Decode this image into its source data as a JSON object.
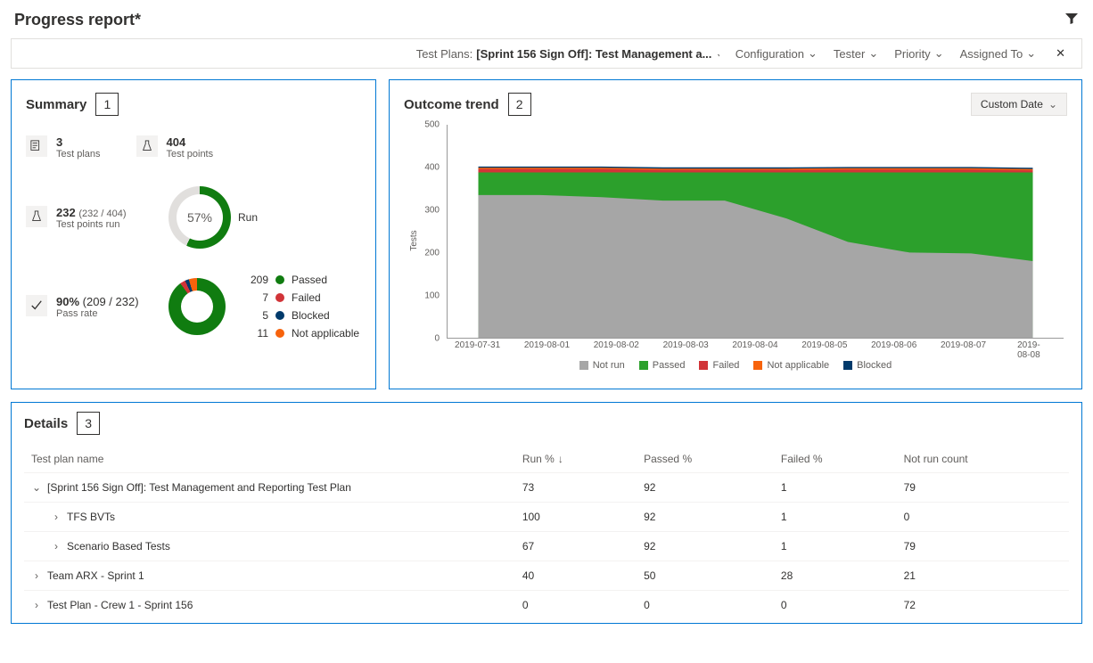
{
  "header": {
    "title": "Progress report*"
  },
  "filterbar": {
    "testplans_label": "Test Plans:",
    "testplans_value": "[Sprint 156 Sign Off]: Test Management a...",
    "dropdowns": [
      "Configuration",
      "Tester",
      "Priority",
      "Assigned To"
    ]
  },
  "summary": {
    "title": "Summary",
    "badge": "1",
    "testplans": {
      "value": "3",
      "label": "Test plans"
    },
    "testpoints": {
      "value": "404",
      "label": "Test points"
    },
    "run": {
      "value": "232",
      "frac": "(232 / 404)",
      "label": "Test points run",
      "percent": 57,
      "percent_label": "57%",
      "run_label": "Run",
      "ring_color": "#107c10",
      "ring_bg": "#e1dfdd"
    },
    "pass": {
      "value": "90%",
      "frac": "(209 / 232)",
      "label": "Pass rate",
      "slices": [
        {
          "n": "209",
          "label": "Passed",
          "color": "#107c10",
          "pct": 90.1
        },
        {
          "n": "7",
          "label": "Failed",
          "color": "#d13438",
          "pct": 3.0
        },
        {
          "n": "5",
          "label": "Blocked",
          "color": "#003a6b",
          "pct": 2.2
        },
        {
          "n": "11",
          "label": "Not applicable",
          "color": "#f7630c",
          "pct": 4.7
        }
      ]
    }
  },
  "trend": {
    "title": "Outcome trend",
    "badge": "2",
    "date_button": "Custom Date",
    "y_label": "Tests",
    "ylim": [
      0,
      500
    ],
    "yticks": [
      0,
      100,
      200,
      300,
      400,
      500
    ],
    "xticks": [
      "2019-07-31",
      "2019-08-01",
      "2019-08-02",
      "2019-08-03",
      "2019-08-04",
      "2019-08-05",
      "2019-08-06",
      "2019-08-07",
      "2019-08-08"
    ],
    "series_order": [
      "notrun",
      "passed",
      "failed",
      "na",
      "blocked"
    ],
    "colors": {
      "notrun": "#a6a6a6",
      "passed": "#2ca02c",
      "failed": "#d13438",
      "na": "#f7630c",
      "blocked": "#003a6b"
    },
    "stacked_cumulative": {
      "notrun": [
        335,
        335,
        330,
        322,
        322,
        280,
        225,
        200,
        198,
        180
      ],
      "passed": [
        388,
        388,
        388,
        388,
        388,
        388,
        388,
        388,
        388,
        388
      ],
      "failed": [
        396,
        396,
        396,
        394,
        394,
        394,
        395,
        395,
        395,
        393
      ],
      "na": [
        399,
        399,
        399,
        397,
        397,
        397,
        398,
        398,
        398,
        396
      ],
      "blocked": [
        402,
        402,
        402,
        400,
        400,
        400,
        401,
        401,
        401,
        399
      ]
    },
    "legend": [
      {
        "key": "notrun",
        "label": "Not run"
      },
      {
        "key": "passed",
        "label": "Passed"
      },
      {
        "key": "failed",
        "label": "Failed"
      },
      {
        "key": "na",
        "label": "Not applicable"
      },
      {
        "key": "blocked",
        "label": "Blocked"
      }
    ]
  },
  "details": {
    "title": "Details",
    "badge": "3",
    "columns": [
      "Test plan name",
      "Run %",
      "Passed %",
      "Failed %",
      "Not run count"
    ],
    "sort_col": 1,
    "rows": [
      {
        "indent": 0,
        "expanded": true,
        "name": "[Sprint 156 Sign Off]: Test Management and Reporting Test Plan",
        "run": "73",
        "passed": "92",
        "failed": "1",
        "notrun": "79"
      },
      {
        "indent": 1,
        "expanded": false,
        "name": "TFS BVTs",
        "run": "100",
        "passed": "92",
        "failed": "1",
        "notrun": "0"
      },
      {
        "indent": 1,
        "expanded": false,
        "name": "Scenario Based Tests",
        "run": "67",
        "passed": "92",
        "failed": "1",
        "notrun": "79"
      },
      {
        "indent": 0,
        "expanded": false,
        "name": "Team ARX - Sprint 1",
        "run": "40",
        "passed": "50",
        "failed": "28",
        "notrun": "21"
      },
      {
        "indent": 0,
        "expanded": false,
        "name": "Test Plan - Crew 1 - Sprint 156",
        "run": "0",
        "passed": "0",
        "failed": "0",
        "notrun": "72"
      }
    ]
  }
}
